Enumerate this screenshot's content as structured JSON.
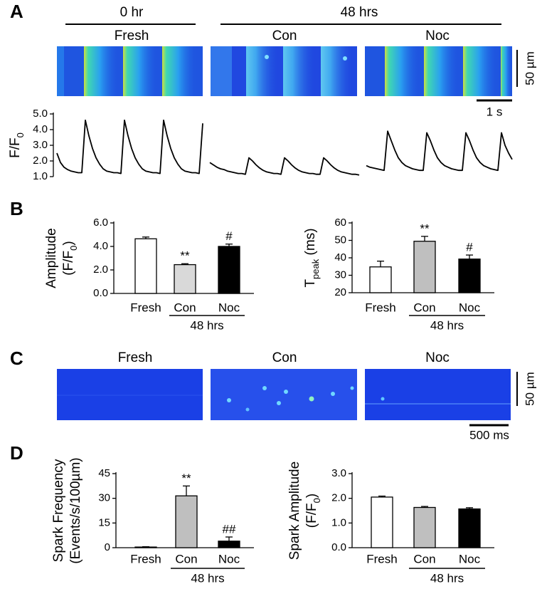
{
  "figure": {
    "panels": [
      "A",
      "B",
      "C",
      "D"
    ],
    "a": {
      "time_groups": [
        "0 hr",
        "48 hrs"
      ],
      "image_labels": [
        "Fresh",
        "Con",
        "Noc"
      ],
      "scale_y": "50 µm",
      "scale_x": "1 s"
    },
    "c": {
      "image_labels": [
        "Fresh",
        "Con",
        "Noc"
      ],
      "scale_y": "50 µm",
      "scale_x": "500 ms"
    }
  },
  "chart_data": [
    {
      "type": "line",
      "color": "#000000",
      "ylabel": [
        [
          {
            "text": "F/F"
          },
          {
            "text": "0",
            "sub": true
          }
        ]
      ],
      "ylim": [
        1,
        5
      ],
      "yticks": [
        {
          "value": 1,
          "label": "1.0"
        },
        {
          "value": 2,
          "label": "2.0"
        },
        {
          "value": 3,
          "label": "3.0"
        },
        {
          "value": 4,
          "label": "4.0"
        },
        {
          "value": 5,
          "label": "5.0"
        }
      ],
      "values": [
        2.5,
        1.9,
        1.6,
        1.45,
        1.35,
        1.3,
        1.25,
        1.25,
        4.6,
        3.6,
        2.8,
        2.2,
        1.8,
        1.5,
        1.35,
        1.3,
        1.25,
        1.25,
        1.2,
        4.6,
        3.6,
        2.8,
        2.2,
        1.8,
        1.5,
        1.35,
        1.3,
        1.25,
        1.25,
        1.2,
        4.6,
        3.6,
        2.8,
        2.2,
        1.8,
        1.5,
        1.35,
        1.3,
        1.25,
        1.25,
        1.2,
        4.4,
        null,
        1.9,
        1.75,
        1.6,
        1.5,
        1.45,
        1.35,
        1.3,
        1.25,
        1.2,
        1.2,
        1.15,
        2.2,
        2.0,
        1.75,
        1.55,
        1.4,
        1.3,
        1.25,
        1.2,
        1.2,
        1.15,
        2.2,
        2.0,
        1.75,
        1.55,
        1.4,
        1.3,
        1.25,
        1.2,
        1.2,
        1.15,
        1.15,
        2.2,
        2.0,
        1.75,
        1.55,
        1.4,
        1.3,
        1.25,
        1.2,
        1.15,
        1.15,
        1.1,
        null,
        1.7,
        1.6,
        1.55,
        1.5,
        1.45,
        1.4,
        3.9,
        3.3,
        2.7,
        2.2,
        1.9,
        1.7,
        1.6,
        1.5,
        1.45,
        1.4,
        1.4,
        3.8,
        3.3,
        2.7,
        2.2,
        1.9,
        1.7,
        1.6,
        1.5,
        1.45,
        1.4,
        1.4,
        3.8,
        3.3,
        2.7,
        2.2,
        1.9,
        1.7,
        1.6,
        1.5,
        1.45,
        1.4,
        3.8,
        3.0,
        2.5,
        2.1
      ]
    },
    {
      "type": "bar",
      "categories": [
        "Fresh",
        "Con",
        "Noc"
      ],
      "ylabel": [
        [
          {
            "text": "Amplitude"
          }
        ],
        [
          {
            "text": "(F/F"
          },
          {
            "text": "0",
            "sub": true
          },
          {
            "text": ")"
          }
        ]
      ],
      "values": [
        4.65,
        2.45,
        4.0
      ],
      "errors": [
        0.15,
        0.08,
        0.2
      ],
      "colors": [
        "#ffffff",
        "#d9d9d9",
        "#000000"
      ],
      "annotations": [
        null,
        "**",
        "#"
      ],
      "x_group_label": "48 hrs",
      "ylim": [
        0,
        6
      ],
      "yticks": [
        {
          "value": 0,
          "label": "0.0"
        },
        {
          "value": 2,
          "label": "2.0"
        },
        {
          "value": 4,
          "label": "4.0"
        },
        {
          "value": 6,
          "label": "6.0"
        }
      ]
    },
    {
      "type": "bar",
      "categories": [
        "Fresh",
        "Con",
        "Noc"
      ],
      "ylabel": [
        [
          {
            "text": "T"
          },
          {
            "text": "peak",
            "sub": true
          },
          {
            "text": " (ms)"
          }
        ]
      ],
      "values": [
        34.8,
        49.5,
        39.3
      ],
      "errors": [
        3.3,
        2.8,
        2.3
      ],
      "colors": [
        "#ffffff",
        "#bfbfbf",
        "#000000"
      ],
      "annotations": [
        null,
        "**",
        "#"
      ],
      "x_group_label": "48 hrs",
      "ylim": [
        20,
        60
      ],
      "yticks": [
        20,
        30,
        40,
        50,
        60
      ]
    },
    {
      "type": "bar",
      "categories": [
        "Fresh",
        "Con",
        "Noc"
      ],
      "ylabel": [
        [
          {
            "text": "Spark Frequency"
          }
        ],
        [
          {
            "text": "(Events/s/100µm)"
          }
        ]
      ],
      "values": [
        0.4,
        31.5,
        4.0
      ],
      "errors": [
        0.2,
        6.0,
        2.5
      ],
      "colors": [
        "#ffffff",
        "#bfbfbf",
        "#000000"
      ],
      "annotations": [
        null,
        "**",
        "##"
      ],
      "x_group_label": "48 hrs",
      "ylim": [
        0,
        45
      ],
      "yticks": [
        0,
        15,
        30,
        45
      ]
    },
    {
      "type": "bar",
      "categories": [
        "Fresh",
        "Con",
        "Noc"
      ],
      "ylabel": [
        [
          {
            "text": "Spark Amplitude"
          }
        ],
        [
          {
            "text": "(F/F"
          },
          {
            "text": "0",
            "sub": true
          },
          {
            "text": ")"
          }
        ]
      ],
      "values": [
        2.05,
        1.63,
        1.57
      ],
      "errors": [
        0.04,
        0.04,
        0.05
      ],
      "colors": [
        "#ffffff",
        "#bfbfbf",
        "#000000"
      ],
      "annotations": [
        null,
        null,
        null
      ],
      "x_group_label": "48 hrs",
      "ylim": [
        0,
        3
      ],
      "yticks": [
        {
          "value": 0,
          "label": "0.0"
        },
        {
          "value": 1,
          "label": "1.0"
        },
        {
          "value": 2,
          "label": "2.0"
        },
        {
          "value": 3,
          "label": "3.0"
        }
      ]
    }
  ]
}
